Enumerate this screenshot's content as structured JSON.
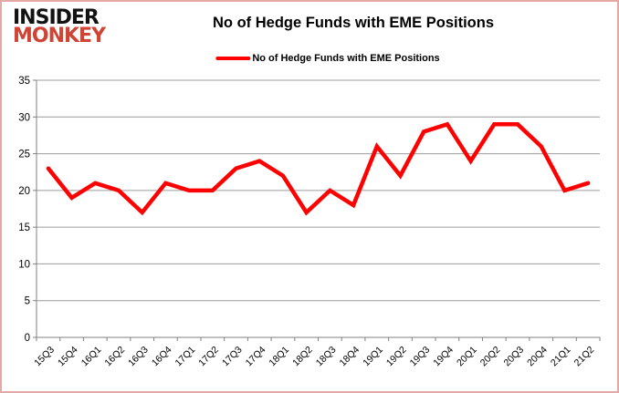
{
  "header": {
    "logo_line1": "INSIDER",
    "logo_line2": "MONKEY",
    "title": "No of Hedge Funds with EME Positions",
    "legend_label": "No of Hedge Funds with EME Positions"
  },
  "colors": {
    "line": "#ff0000",
    "logo_black": "#121212",
    "logo_red": "#cf4435",
    "grid": "#9c9c9c",
    "axis": "#808080",
    "tick_text": "#000000",
    "border": "#e6a8a4",
    "background": "#ffffff"
  },
  "chart_data": {
    "type": "line",
    "title": "No of Hedge Funds with EME Positions",
    "categories": [
      "15Q3",
      "15Q4",
      "16Q1",
      "16Q2",
      "16Q3",
      "16Q4",
      "17Q1",
      "17Q2",
      "17Q3",
      "17Q4",
      "18Q1",
      "18Q2",
      "18Q3",
      "18Q4",
      "19Q1",
      "19Q2",
      "19Q3",
      "19Q4",
      "20Q1",
      "20Q2",
      "20Q3",
      "20Q4",
      "21Q1",
      "21Q2"
    ],
    "series": [
      {
        "name": "No of Hedge Funds with EME Positions",
        "values": [
          23,
          19,
          21,
          20,
          17,
          21,
          20,
          20,
          23,
          24,
          22,
          17,
          20,
          18,
          26,
          22,
          28,
          29,
          24,
          29,
          29,
          26,
          20,
          21
        ]
      }
    ],
    "xlabel": "",
    "ylabel": "",
    "ylim": [
      0,
      35
    ],
    "ytick_step": 5,
    "grid": true,
    "legend_position": "top",
    "x_label_rotation": -45
  }
}
